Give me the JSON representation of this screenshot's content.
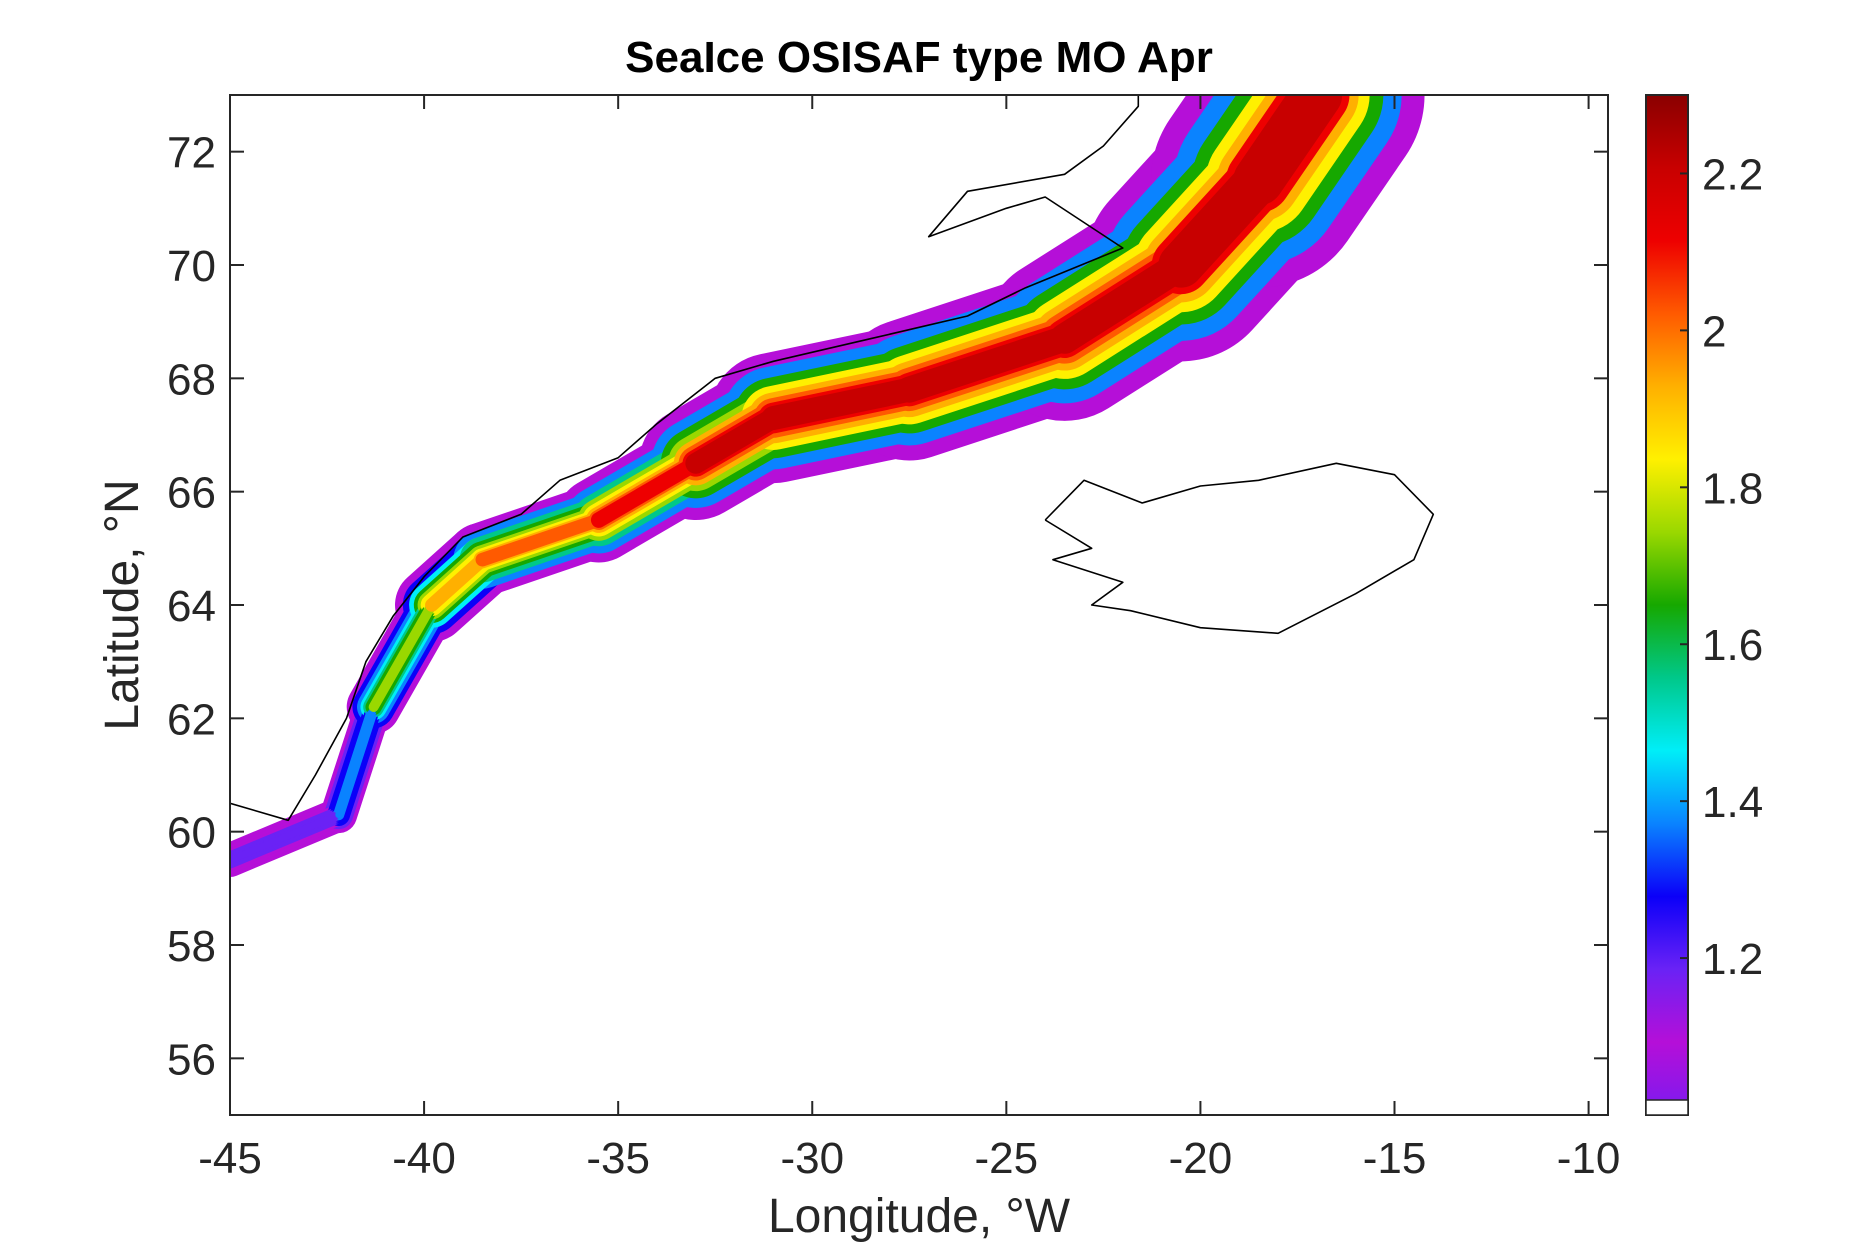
{
  "chart_data": {
    "type": "heatmap",
    "title": "SeaIce OSISAF type MO Apr",
    "xlabel": "Longitude, °W",
    "ylabel": "Latitude, °N",
    "xlim": [
      -45,
      -9.5
    ],
    "ylim": [
      55,
      73
    ],
    "x_ticks": [
      -45,
      -40,
      -35,
      -30,
      -25,
      -20,
      -15,
      -10
    ],
    "x_tick_labels": [
      "-45",
      "-40",
      "-35",
      "-30",
      "-25",
      "-20",
      "-15",
      "-10"
    ],
    "y_ticks": [
      56,
      58,
      60,
      62,
      64,
      66,
      68,
      70,
      72
    ],
    "y_tick_labels": [
      "56",
      "58",
      "60",
      "62",
      "64",
      "66",
      "68",
      "70",
      "72"
    ],
    "colorbar": {
      "limits": [
        1.0,
        2.3
      ],
      "ticks": [
        1.2,
        1.4,
        1.6,
        1.8,
        2.0,
        2.2
      ],
      "tick_labels": [
        "1.2",
        "1.4",
        "1.6",
        "1.8",
        "2",
        "2.2"
      ],
      "colormap": [
        "#7a1bf0",
        "#b50fd8",
        "#6a22f5",
        "#0b00f8",
        "#0a83ff",
        "#00eef8",
        "#00c88a",
        "#16a800",
        "#9ad800",
        "#fff000",
        "#ffb000",
        "#ff5a00",
        "#ee0000",
        "#c80000",
        "#8a0000"
      ]
    },
    "grid": false,
    "ice_band_centerline": [
      {
        "lon": -45.0,
        "lat": 59.5
      },
      {
        "lon": -42.2,
        "lat": 60.3
      },
      {
        "lon": -41.3,
        "lat": 62.2
      },
      {
        "lon": -39.8,
        "lat": 64.0
      },
      {
        "lon": -38.5,
        "lat": 64.8
      },
      {
        "lon": -35.5,
        "lat": 65.5
      },
      {
        "lon": -33.0,
        "lat": 66.5
      },
      {
        "lon": -31.0,
        "lat": 67.3
      },
      {
        "lon": -27.5,
        "lat": 67.8
      },
      {
        "lon": -23.5,
        "lat": 68.7
      },
      {
        "lon": -20.5,
        "lat": 70.0
      },
      {
        "lon": -18.5,
        "lat": 71.5
      },
      {
        "lon": -17.0,
        "lat": 73.0
      }
    ],
    "ice_band_half_width_deg": [
      0.3,
      0.3,
      0.35,
      0.6,
      0.7,
      0.6,
      0.9,
      1.1,
      1.2,
      1.3,
      1.6,
      1.8,
      2.0
    ],
    "ice_band_peak_value": [
      1.15,
      1.2,
      1.6,
      1.9,
      2.0,
      2.05,
      2.2,
      2.25,
      2.25,
      2.25,
      2.3,
      2.3,
      2.3
    ],
    "coastlines": {
      "greenland": [
        {
          "lon": -45.0,
          "lat": 60.5
        },
        {
          "lon": -43.5,
          "lat": 60.2
        },
        {
          "lon": -42.8,
          "lat": 61.0
        },
        {
          "lon": -42.0,
          "lat": 62.0
        },
        {
          "lon": -41.5,
          "lat": 63.0
        },
        {
          "lon": -40.8,
          "lat": 63.8
        },
        {
          "lon": -40.0,
          "lat": 64.5
        },
        {
          "lon": -39.0,
          "lat": 65.2
        },
        {
          "lon": -37.5,
          "lat": 65.6
        },
        {
          "lon": -36.5,
          "lat": 66.2
        },
        {
          "lon": -35.0,
          "lat": 66.6
        },
        {
          "lon": -34.0,
          "lat": 67.2
        },
        {
          "lon": -32.5,
          "lat": 68.0
        },
        {
          "lon": -31.0,
          "lat": 68.3
        },
        {
          "lon": -28.5,
          "lat": 68.7
        },
        {
          "lon": -26.0,
          "lat": 69.1
        },
        {
          "lon": -24.5,
          "lat": 69.6
        },
        {
          "lon": -22.0,
          "lat": 70.3
        },
        {
          "lon": -24.0,
          "lat": 71.2
        },
        {
          "lon": -25.0,
          "lat": 71.0
        },
        {
          "lon": -27.0,
          "lat": 70.5
        },
        {
          "lon": -26.0,
          "lat": 71.3
        },
        {
          "lon": -23.5,
          "lat": 71.6
        },
        {
          "lon": -22.5,
          "lat": 72.1
        },
        {
          "lon": -21.6,
          "lat": 72.8
        },
        {
          "lon": -21.6,
          "lat": 73.0
        }
      ],
      "iceland": [
        {
          "lon": -24.0,
          "lat": 65.5
        },
        {
          "lon": -23.0,
          "lat": 66.2
        },
        {
          "lon": -21.5,
          "lat": 65.8
        },
        {
          "lon": -20.0,
          "lat": 66.1
        },
        {
          "lon": -18.5,
          "lat": 66.2
        },
        {
          "lon": -16.5,
          "lat": 66.5
        },
        {
          "lon": -15.0,
          "lat": 66.3
        },
        {
          "lon": -14.0,
          "lat": 65.6
        },
        {
          "lon": -14.5,
          "lat": 64.8
        },
        {
          "lon": -16.0,
          "lat": 64.2
        },
        {
          "lon": -18.0,
          "lat": 63.5
        },
        {
          "lon": -20.0,
          "lat": 63.6
        },
        {
          "lon": -21.8,
          "lat": 63.9
        },
        {
          "lon": -22.8,
          "lat": 64.0
        },
        {
          "lon": -22.0,
          "lat": 64.4
        },
        {
          "lon": -23.8,
          "lat": 64.8
        },
        {
          "lon": -22.8,
          "lat": 65.0
        },
        {
          "lon": -24.0,
          "lat": 65.5
        }
      ]
    }
  }
}
